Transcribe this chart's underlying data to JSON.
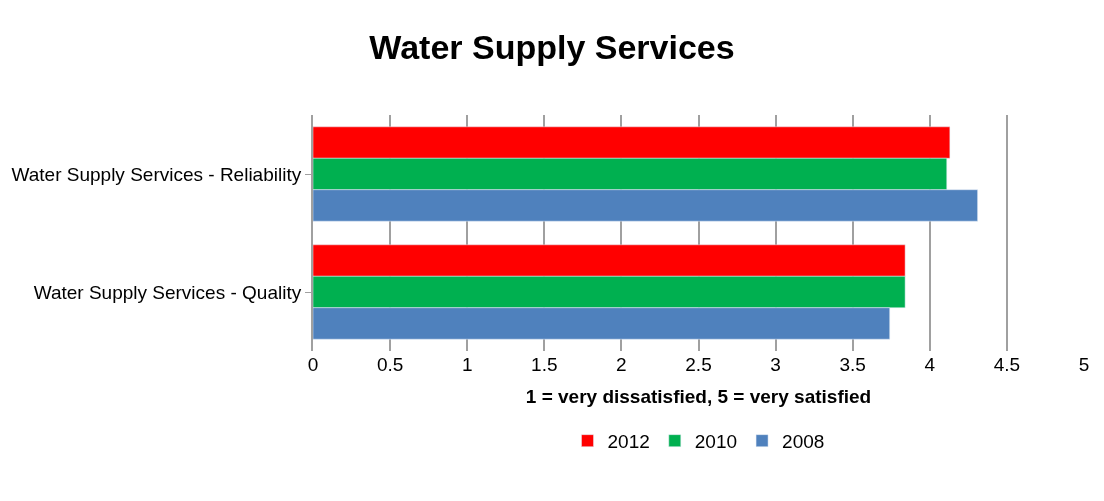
{
  "chart_data": {
    "type": "bar",
    "orientation": "horizontal",
    "title": "Water Supply Services",
    "xlabel": "1 = very dissatisfied, 5 = very satisfied",
    "categories": [
      "Water Supply Services - Reliability",
      "Water Supply Services - Quality"
    ],
    "series": [
      {
        "name": "2012",
        "color": "#ff0000",
        "values": [
          4.13,
          3.84
        ]
      },
      {
        "name": "2010",
        "color": "#00b050",
        "values": [
          4.11,
          3.84
        ]
      },
      {
        "name": "2008",
        "color": "#4f81bd",
        "values": [
          4.31,
          3.74
        ]
      }
    ],
    "xlim": [
      0,
      5
    ],
    "xticks": [
      0,
      0.5,
      1,
      1.5,
      2,
      2.5,
      3,
      3.5,
      4,
      4.5,
      5
    ],
    "grid": "x",
    "legend": "bottom"
  }
}
